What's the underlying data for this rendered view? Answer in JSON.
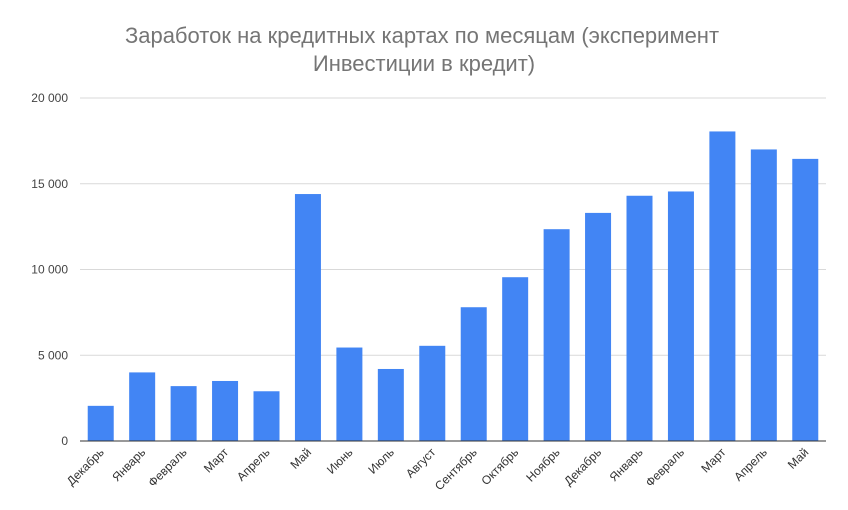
{
  "chart_data": {
    "type": "bar",
    "title": "Заработок на кредитных картах по месяцам (эксперимент Инвестиции в кредит)",
    "title_lines": [
      "Заработок на кредитных картах по месяцам (эксперимент",
      "Инвестиции в кредит)"
    ],
    "xlabel": "",
    "ylabel": "",
    "ylim": [
      0,
      20000
    ],
    "yticks": [
      0,
      5000,
      10000,
      15000,
      20000
    ],
    "ytick_labels": [
      "0",
      "5 000",
      "10 000",
      "15 000",
      "20 000"
    ],
    "grid": true,
    "legend": "none",
    "bar_color": "#4285f4",
    "categories": [
      "Декабрь",
      "Январь",
      "Февраль",
      "Март",
      "Апрель",
      "Май",
      "Июнь",
      "Июль",
      "Август",
      "Сентябрь",
      "Октябрь",
      "Ноябрь",
      "Декабрь",
      "Январь",
      "Февраль",
      "Март",
      "Апрель",
      "Май"
    ],
    "values": [
      2050,
      4000,
      3200,
      3500,
      2900,
      14400,
      5450,
      4200,
      5550,
      7800,
      9550,
      12350,
      13300,
      14300,
      14550,
      18050,
      17000,
      16450
    ]
  }
}
